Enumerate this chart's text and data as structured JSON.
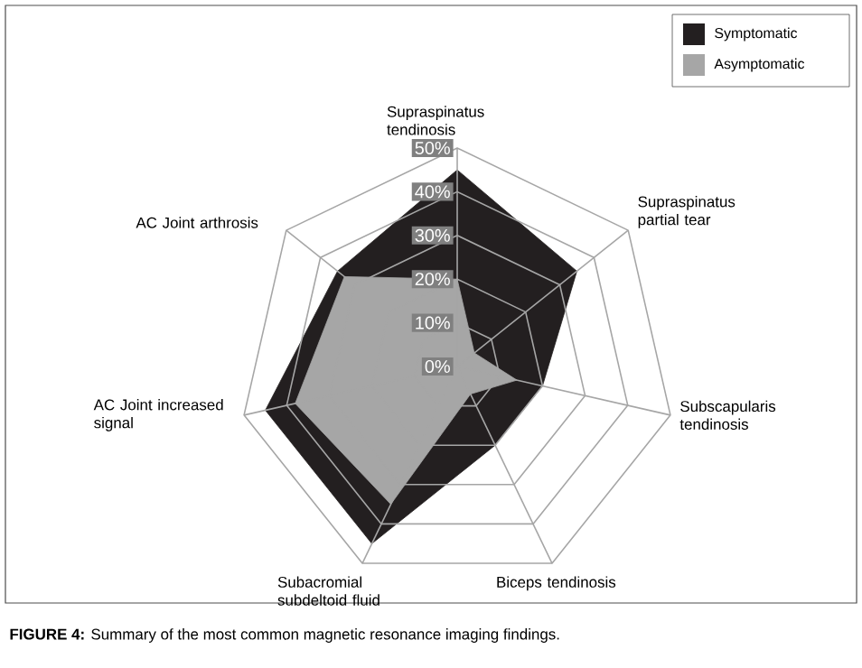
{
  "chart_data": {
    "type": "radar",
    "categories": [
      "Supraspinatus tendinosis",
      "Supraspinatus partial tear",
      "Subscapularis tendinosis",
      "Biceps tendinosis",
      "Subacromial subdeltoid fluid",
      "AC Joint increased signal",
      "AC Joint arthrosis"
    ],
    "series": [
      {
        "name": "Symptomatic",
        "color": "#231f20",
        "values": [
          45,
          35,
          20,
          20,
          45,
          45,
          35
        ]
      },
      {
        "name": "Asymptomatic",
        "color": "#a6a6a6",
        "values": [
          20,
          5,
          14,
          7,
          35,
          38,
          33
        ]
      }
    ],
    "ylim": [
      0,
      50
    ],
    "yticks": [
      {
        "value": 0,
        "label": "0%"
      },
      {
        "value": 10,
        "label": "10%"
      },
      {
        "value": 20,
        "label": "20%"
      },
      {
        "value": 30,
        "label": "30%"
      },
      {
        "value": 40,
        "label": "40%"
      },
      {
        "value": 50,
        "label": "50%"
      }
    ],
    "grid": true,
    "legend": "top right",
    "annotations": [
      "**FIGURE 4:** Summary of the most common magnetic resonance imaging findings."
    ]
  }
}
